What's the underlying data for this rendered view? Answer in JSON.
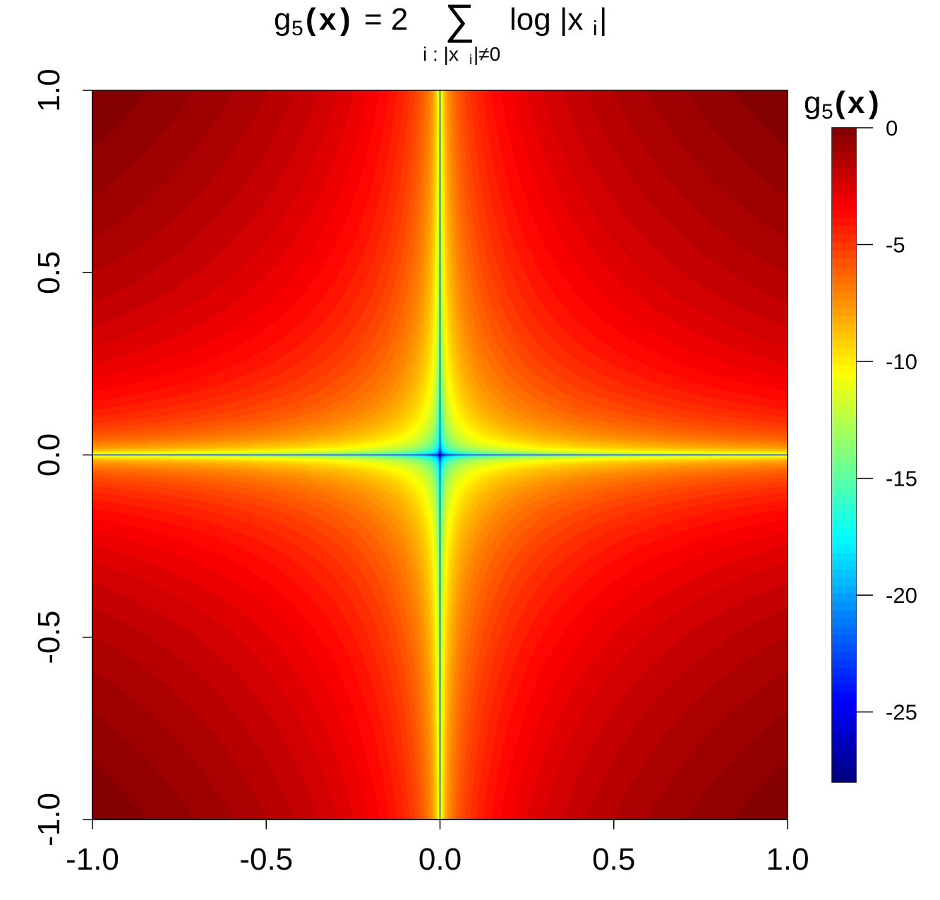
{
  "title": {
    "lhs_fn": "g",
    "lhs_sub": "5",
    "lhs_open": "(",
    "lhs_var": "x",
    "lhs_close": ")",
    "eq": "= 2",
    "sum_symbol": "∑",
    "sum_index": "i : |x",
    "sum_index_sub": "i",
    "sum_index_cond": "|≠0",
    "rhs": "log |x",
    "rhs_sub": "i",
    "rhs_end": "|"
  },
  "legend": {
    "fn": "g",
    "sub": "5",
    "open": "(",
    "var": "x",
    "close": ")"
  },
  "chart_data": {
    "type": "heatmap",
    "function": "2*(log|x|+log|y|)",
    "x": {
      "range": [
        -1.0,
        1.0
      ],
      "ticks": [
        "-1.0",
        "-0.5",
        "0.0",
        "0.5",
        "1.0"
      ]
    },
    "y": {
      "range": [
        -1.0,
        1.0
      ],
      "ticks": [
        "-1.0",
        "-0.5",
        "0.0",
        "0.5",
        "1.0"
      ]
    },
    "z": {
      "range": [
        -28,
        0
      ],
      "ticks": [
        "0",
        "-5",
        "-10",
        "-15",
        "-20",
        "-25"
      ]
    },
    "colormap": [
      "#00007F",
      "#0000FF",
      "#007FFF",
      "#00FFFF",
      "#7FFF7F",
      "#FFFF00",
      "#FF7F00",
      "#FF0000",
      "#7F0000"
    ],
    "grid": false,
    "legend_position": "right"
  }
}
